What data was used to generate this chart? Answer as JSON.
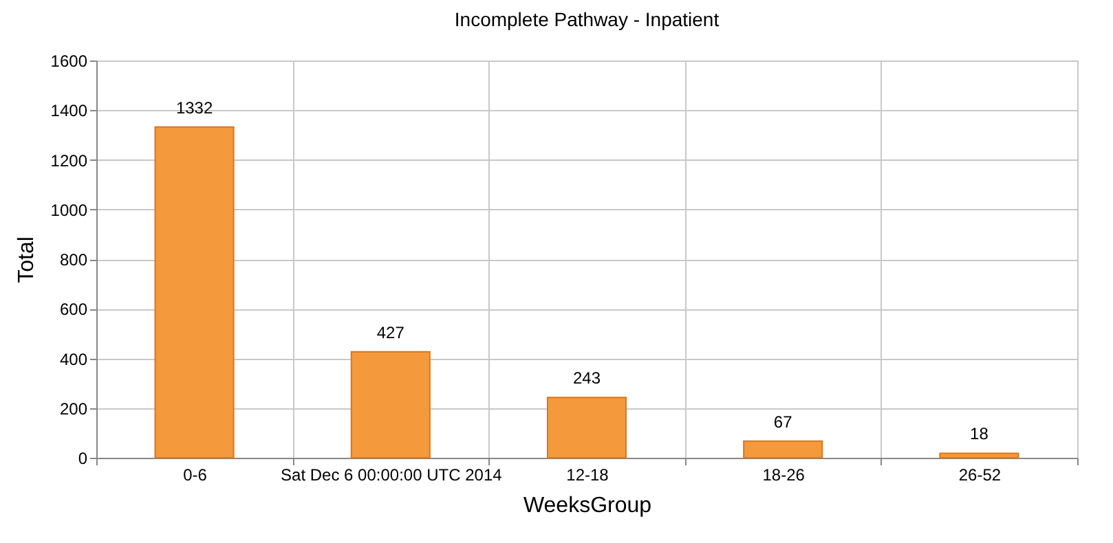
{
  "chart_data": {
    "type": "bar",
    "title": "Incomplete Pathway - Inpatient",
    "xlabel": "WeeksGroup",
    "ylabel": "Total",
    "categories": [
      "0-6",
      "Sat Dec 6 00:00:00 UTC 2014",
      "12-18",
      "18-26",
      "26-52"
    ],
    "values": [
      1332,
      427,
      243,
      67,
      18
    ],
    "color": "#f59a3c",
    "ylim": [
      0,
      1600
    ],
    "yticks": [
      0,
      200,
      400,
      600,
      800,
      1000,
      1200,
      1400,
      1600
    ],
    "grid": true,
    "data_labels": true
  }
}
